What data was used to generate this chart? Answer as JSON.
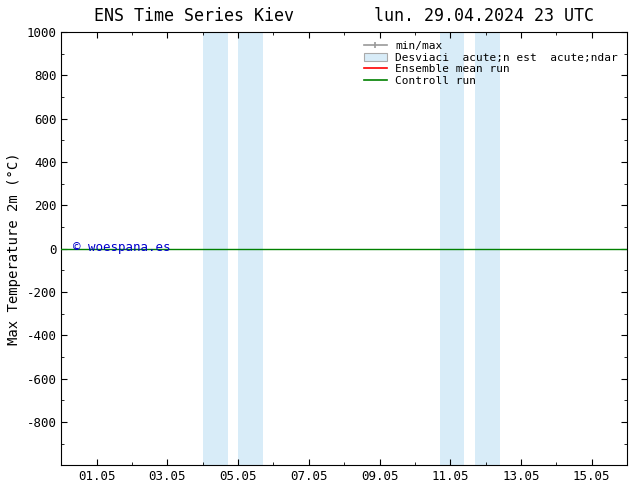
{
  "title_left": "ENS Time Series Kiev",
  "title_right": "lun. 29.04.2024 23 UTC",
  "ylabel": "Max Temperature 2m (°C)",
  "ylim_top": -1000,
  "ylim_bottom": 1000,
  "yticks": [
    -800,
    -600,
    -400,
    -200,
    0,
    200,
    400,
    600,
    800,
    1000
  ],
  "xtick_labels": [
    "01.05",
    "03.05",
    "05.05",
    "07.05",
    "09.05",
    "11.05",
    "13.05",
    "15.05"
  ],
  "xtick_positions": [
    1,
    3,
    5,
    7,
    9,
    11,
    13,
    15
  ],
  "xlim": [
    0,
    16
  ],
  "shaded_regions": [
    {
      "start": 4.0,
      "end": 4.7
    },
    {
      "start": 5.0,
      "end": 5.7
    },
    {
      "start": 10.7,
      "end": 11.4
    },
    {
      "start": 11.7,
      "end": 12.4
    }
  ],
  "shaded_color": "#d8ecf8",
  "horizontal_line_y": 0,
  "ensemble_mean_color": "#ff0000",
  "control_run_color": "#008000",
  "minmax_color": "#999999",
  "watermark_text": "© woespana.es",
  "watermark_color": "#0000cc",
  "legend_label_minmax": "min/max",
  "legend_label_std": "Desviaci  acute;n est  acute;ndar",
  "legend_label_ensemble": "Ensemble mean run",
  "legend_label_control": "Controll run",
  "background_color": "#ffffff",
  "font_color": "#000000",
  "tick_label_fontsize": 9,
  "title_fontsize": 12,
  "ylabel_fontsize": 10,
  "legend_fontsize": 8
}
